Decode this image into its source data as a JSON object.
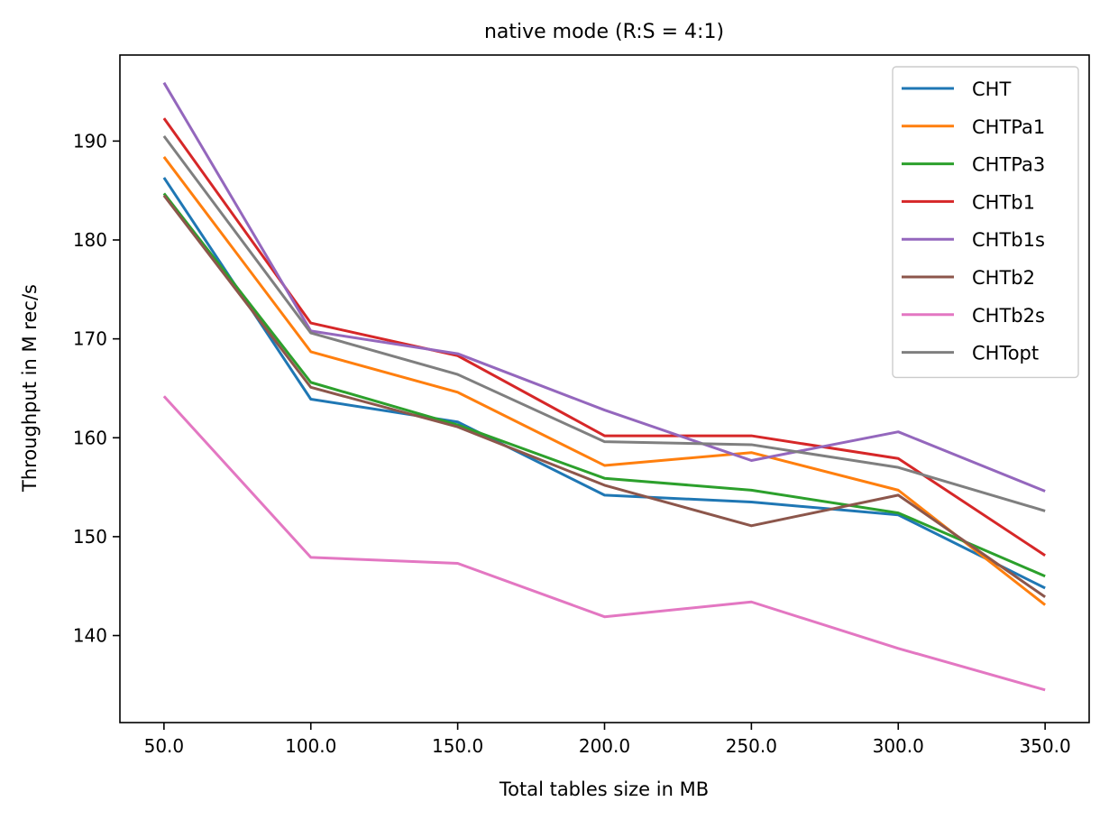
{
  "chart_data": {
    "type": "line",
    "title": "native mode (R:S = 4:1)",
    "xlabel": "Total tables size in MB",
    "ylabel": "Throughput in M rec/s",
    "x": [
      50,
      100,
      150,
      200,
      250,
      300,
      350
    ],
    "x_tick_labels": [
      "50.0",
      "100.0",
      "150.0",
      "200.0",
      "250.0",
      "300.0",
      "350.0"
    ],
    "y_ticks": [
      140,
      150,
      160,
      170,
      180,
      190
    ],
    "y_tick_labels": [
      "140",
      "150",
      "160",
      "170",
      "180",
      "190"
    ],
    "xlim": [
      35,
      365
    ],
    "ylim": [
      131.2,
      198.7
    ],
    "grid": false,
    "legend_position": "top-right",
    "series": [
      {
        "name": "CHT",
        "color": "#1f77b4",
        "values": [
          186.3,
          163.9,
          161.6,
          154.2,
          153.5,
          152.2,
          144.8
        ]
      },
      {
        "name": "CHTPa1",
        "color": "#ff7f0e",
        "values": [
          188.4,
          168.7,
          164.6,
          157.2,
          158.5,
          154.7,
          143.1
        ]
      },
      {
        "name": "CHTPa3",
        "color": "#2ca02c",
        "values": [
          184.7,
          165.6,
          161.3,
          155.9,
          154.7,
          152.4,
          146.0
        ]
      },
      {
        "name": "CHTb1",
        "color": "#d62728",
        "values": [
          192.3,
          171.6,
          168.3,
          160.2,
          160.2,
          157.9,
          148.1
        ]
      },
      {
        "name": "CHTb1s",
        "color": "#9467bd",
        "values": [
          195.9,
          170.8,
          168.5,
          162.8,
          157.7,
          160.6,
          154.6
        ]
      },
      {
        "name": "CHTb2",
        "color": "#8c564b",
        "values": [
          184.5,
          165.1,
          161.1,
          155.2,
          151.1,
          154.2,
          143.9
        ]
      },
      {
        "name": "CHTb2s",
        "color": "#e377c2",
        "values": [
          164.2,
          147.9,
          147.3,
          141.9,
          143.4,
          138.7,
          134.5
        ]
      },
      {
        "name": "CHTopt",
        "color": "#7f7f7f",
        "values": [
          190.5,
          170.6,
          166.4,
          159.6,
          159.3,
          157.0,
          152.6
        ]
      }
    ]
  }
}
